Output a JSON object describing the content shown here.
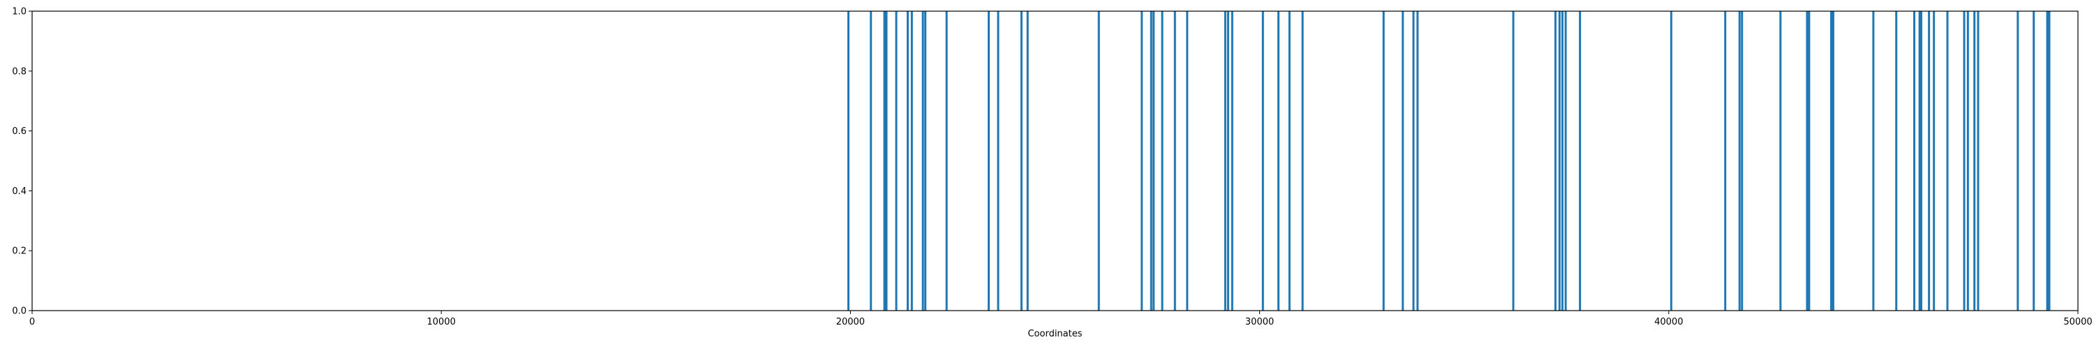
{
  "chart_data": {
    "type": "bar",
    "title": "",
    "xlabel": "Coordinates",
    "ylabel": "",
    "xlim": [
      0,
      50000
    ],
    "ylim": [
      0.0,
      1.0
    ],
    "x_ticks": [
      "0",
      "10000",
      "20000",
      "30000",
      "40000",
      "50000"
    ],
    "x_tick_values": [
      0,
      10000,
      20000,
      30000,
      40000,
      50000
    ],
    "y_ticks": [
      "0.0",
      "0.2",
      "0.4",
      "0.6",
      "0.8",
      "1.0"
    ],
    "y_tick_values": [
      0.0,
      0.2,
      0.4,
      0.6,
      0.8,
      1.0
    ],
    "bar_color": "#1f77b4",
    "grid": false,
    "x": [
      19950,
      20500,
      20830,
      20880,
      21120,
      21400,
      21500,
      21770,
      21830,
      22350,
      23380,
      23610,
      24180,
      24330,
      26070,
      27120,
      27350,
      27410,
      27620,
      27930,
      28230,
      29160,
      29230,
      29330,
      30080,
      30460,
      30730,
      31050,
      33030,
      33500,
      33760,
      33860,
      36200,
      37230,
      37330,
      37400,
      37480,
      37830,
      40060,
      41380,
      41730,
      41790,
      42730,
      43380,
      43430,
      43970,
      44020,
      45000,
      45560,
      46000,
      46130,
      46170,
      46360,
      46480,
      46810,
      47220,
      47310,
      47470,
      47560,
      48530,
      48920,
      49250,
      49300
    ],
    "values": [
      1,
      1,
      1,
      1,
      1,
      1,
      1,
      1,
      1,
      1,
      1,
      1,
      1,
      1,
      1,
      1,
      1,
      1,
      1,
      1,
      1,
      1,
      1,
      1,
      1,
      1,
      1,
      1,
      1,
      1,
      1,
      1,
      1,
      1,
      1,
      1,
      1,
      1,
      1,
      1,
      1,
      1,
      1,
      1,
      1,
      1,
      1,
      1,
      1,
      1,
      1,
      1,
      1,
      1,
      1,
      1,
      1,
      1,
      1,
      1,
      1,
      1,
      1
    ]
  }
}
